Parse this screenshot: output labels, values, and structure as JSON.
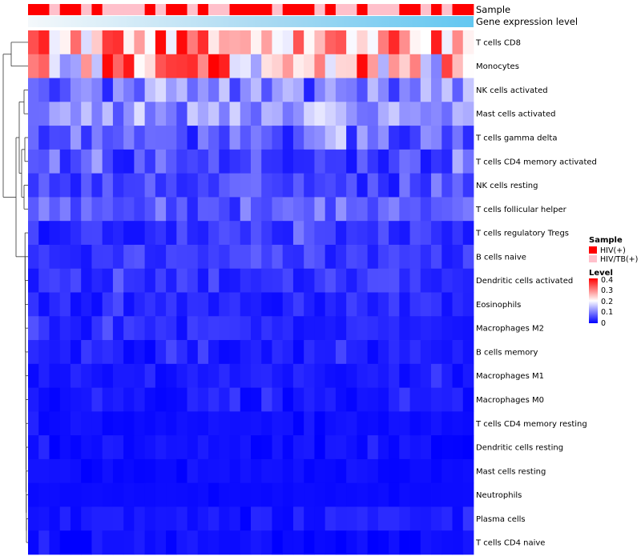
{
  "chart_data": {
    "type": "heatmap",
    "title": "",
    "annotation_tracks": [
      {
        "name": "Sample",
        "label": "Sample"
      },
      {
        "name": "Gene expression level",
        "label": "Gene expression level"
      }
    ],
    "rows": [
      "T cells CD8",
      "Monocytes",
      "NK cells activated",
      "Mast cells activated",
      "T cells gamma delta",
      "T cells CD4 memory activated",
      "NK cells resting",
      "T cells follicular helper",
      "T cells regulatory  Tregs",
      "B cells naive",
      "Dendritic cells activated",
      "Eosinophils",
      "Macrophages M2",
      "B cells memory",
      "Macrophages M1",
      "Macrophages M0",
      "T cells CD4 memory resting",
      "Dendritic cells resting",
      "Mast cells resting",
      "Neutrophils",
      "Plasma cells",
      "T cells CD4 naive"
    ],
    "sample_groups": [
      "HIV(+)",
      "HIV(+)",
      "HIV/TB(+)",
      "HIV(+)",
      "HIV(+)",
      "HIV/TB(+)",
      "HIV(+)",
      "HIV/TB(+)",
      "HIV/TB(+)",
      "HIV/TB(+)",
      "HIV/TB(+)",
      "HIV(+)",
      "HIV/TB(+)",
      "HIV(+)",
      "HIV(+)",
      "HIV/TB(+)",
      "HIV(+)",
      "HIV/TB(+)",
      "HIV/TB(+)",
      "HIV(+)",
      "HIV(+)",
      "HIV(+)",
      "HIV(+)",
      "HIV/TB(+)",
      "HIV(+)",
      "HIV(+)",
      "HIV(+)",
      "HIV/TB(+)",
      "HIV(+)",
      "HIV/TB(+)",
      "HIV/TB(+)",
      "HIV(+)",
      "HIV/TB(+)",
      "HIV/TB(+)",
      "HIV/TB(+)",
      "HIV(+)",
      "HIV(+)",
      "HIV/TB(+)",
      "HIV(+)",
      "HIV/TB(+)",
      "HIV(+)",
      "HIV(+)"
    ],
    "legend_sample": {
      "title": "Sample",
      "entries": [
        {
          "label": "HIV(+)",
          "color": "#ff0000"
        },
        {
          "label": "HIV/TB(+)",
          "color": "#ffc0cb"
        }
      ]
    },
    "legend_level": {
      "title": "Level",
      "ticks": [
        "0.4",
        "0.3",
        "0.2",
        "0.1",
        "0"
      ],
      "range": [
        0,
        0.4
      ],
      "colors": [
        "#0000ff",
        "#ffffff",
        "#ff0000"
      ]
    },
    "row_base_values": [
      0.33,
      0.31,
      0.11,
      0.13,
      0.07,
      0.06,
      0.05,
      0.08,
      0.04,
      0.04,
      0.04,
      0.03,
      0.03,
      0.02,
      0.02,
      0.02,
      0.01,
      0.01,
      0.01,
      0.01,
      0.02,
      0.01
    ],
    "row_value_ranges": [
      [
        0.15,
        0.4
      ],
      [
        0.1,
        0.4
      ],
      [
        0.02,
        0.18
      ],
      [
        0.05,
        0.2
      ],
      [
        0.0,
        0.18
      ],
      [
        0.0,
        0.15
      ],
      [
        0.0,
        0.12
      ],
      [
        0.02,
        0.14
      ],
      [
        0.0,
        0.1
      ],
      [
        0.0,
        0.08
      ],
      [
        0.0,
        0.08
      ],
      [
        0.0,
        0.07
      ],
      [
        0.0,
        0.07
      ],
      [
        0.0,
        0.06
      ],
      [
        0.0,
        0.05
      ],
      [
        0.0,
        0.06
      ],
      [
        0.0,
        0.03
      ],
      [
        0.0,
        0.04
      ],
      [
        0.0,
        0.02
      ],
      [
        0.0,
        0.01
      ],
      [
        0.0,
        0.05
      ],
      [
        0.0,
        0.05
      ]
    ]
  }
}
